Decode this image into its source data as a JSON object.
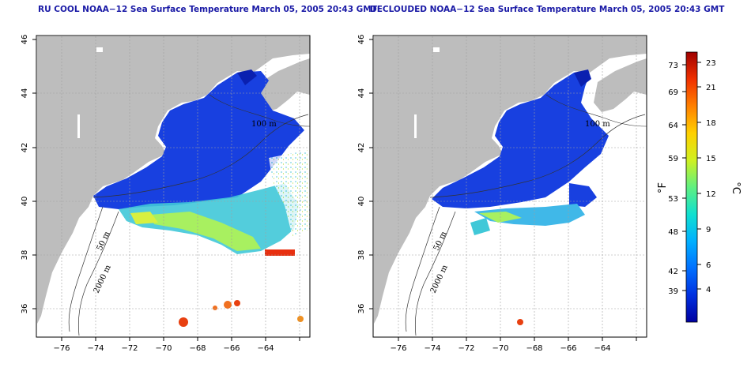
{
  "left_map": {
    "title": "RU COOL NOAA−12 Sea Surface Temperature March 05, 2005 20:43 GMT",
    "x_ticks": [
      "−76",
      "−74",
      "−72",
      "−70",
      "−68",
      "−66",
      "−64"
    ],
    "y_ticks": [
      "36",
      "38",
      "40",
      "42",
      "44",
      "46"
    ],
    "contour_labels": [
      "100 m",
      "50 m",
      "2000 m"
    ]
  },
  "right_map": {
    "title": "DECLOUDED NOAA−12 Sea Surface Temperature March 05, 2005 20:43 GMT",
    "x_ticks": [
      "−76",
      "−74",
      "−72",
      "−70",
      "−68",
      "−66",
      "−64"
    ],
    "y_ticks": [
      "36",
      "38",
      "40",
      "42",
      "44",
      "46"
    ],
    "contour_labels": [
      "100 m",
      "50 m",
      "2000 m"
    ]
  },
  "colorbar": {
    "f_label": "°F",
    "c_label": "°C",
    "f_ticks": [
      "73",
      "69",
      "64",
      "59",
      "53",
      "48",
      "42",
      "39"
    ],
    "c_ticks": [
      "23",
      "21",
      "18",
      "15",
      "12",
      "9",
      "6",
      "4"
    ],
    "colors": [
      "#0000a0",
      "#0030e0",
      "#0070ff",
      "#00b0ff",
      "#10e0d0",
      "#60f080",
      "#d0f020",
      "#ffd000",
      "#ff8000",
      "#f03000",
      "#a00000"
    ]
  },
  "colors": {
    "land": "#bdbdbd",
    "cold_water": "#1840e0",
    "title": "#1a1aa6"
  }
}
